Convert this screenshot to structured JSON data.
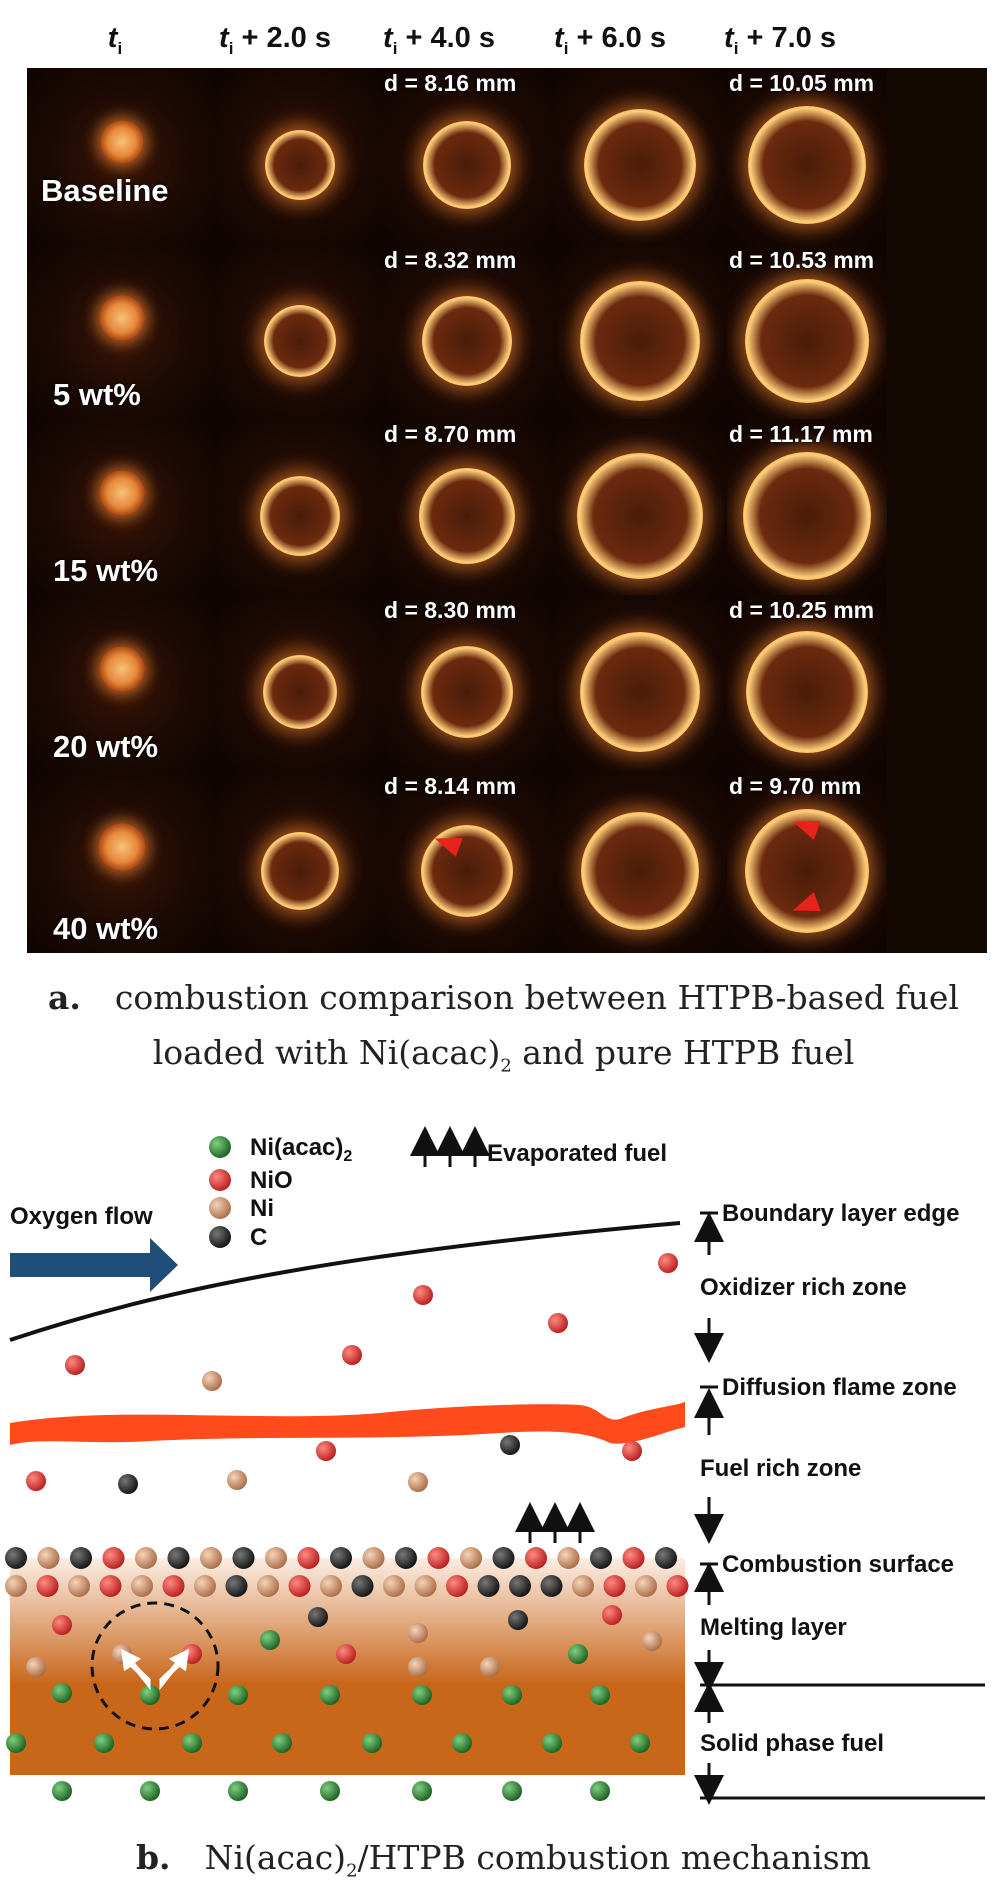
{
  "panel_a": {
    "columns": [
      {
        "base": "t",
        "sub": "i",
        "suffix": ""
      },
      {
        "base": "t",
        "sub": "i",
        "suffix": " + 2.0 s"
      },
      {
        "base": "t",
        "sub": "i",
        "suffix": " + 4.0 s"
      },
      {
        "base": "t",
        "sub": "i",
        "suffix": " + 6.0 s"
      },
      {
        "base": "t",
        "sub": "i",
        "suffix": " + 7.0 s"
      }
    ],
    "rows": [
      {
        "label": "Baseline",
        "d4": "d = 8.16 mm",
        "d7": "d = 10.05 mm"
      },
      {
        "label": "5 wt%",
        "d4": "d = 8.32 mm",
        "d7": "d = 10.53 mm"
      },
      {
        "label": "15 wt%",
        "d4": "d = 8.70 mm",
        "d7": "d = 11.17 mm"
      },
      {
        "label": "20 wt%",
        "d4": "d = 8.30 mm",
        "d7": "d = 10.25 mm"
      },
      {
        "label": "40 wt%",
        "d4": "d = 8.14 mm",
        "d7": "d = 9.70 mm"
      }
    ],
    "caption": {
      "letter": "a.",
      "line1": "combustion comparison between HTPB-based fuel",
      "line2_pre": "loaded with Ni(acac)",
      "line2_sub": "2",
      "line2_post": " and pure HTPB fuel"
    }
  },
  "panel_b": {
    "legend": [
      {
        "label": "Ni(acac)",
        "sub": "2",
        "color": "#2e7d32"
      },
      {
        "label": "NiO",
        "sub": "",
        "color": "#d32f2f"
      },
      {
        "label": "Ni",
        "sub": "",
        "color": "#d7a07a"
      },
      {
        "label": "C",
        "sub": "",
        "color": "#222222"
      }
    ],
    "evaporated_label": "Evaporated fuel",
    "oxygen_flow_label": "Oxygen flow",
    "zones": {
      "boundary_layer_edge": "Boundary layer edge",
      "oxidizer_rich_zone": "Oxidizer rich zone",
      "diffusion_flame_zone": "Diffusion flame zone",
      "fuel_rich_zone": "Fuel rich zone",
      "combustion_surface": "Combustion surface",
      "melting_layer": "Melting layer",
      "solid_phase_fuel": "Solid phase fuel"
    },
    "caption": {
      "letter": "b.",
      "pre": "Ni(acac)",
      "sub": "2",
      "post": "/HTPB combustion mechanism"
    },
    "colors": {
      "oxygen_arrow": "#1f4e79",
      "flame": "#ff4a1c",
      "melt_top": "#fbeee4",
      "solid": "#c8661a"
    }
  }
}
